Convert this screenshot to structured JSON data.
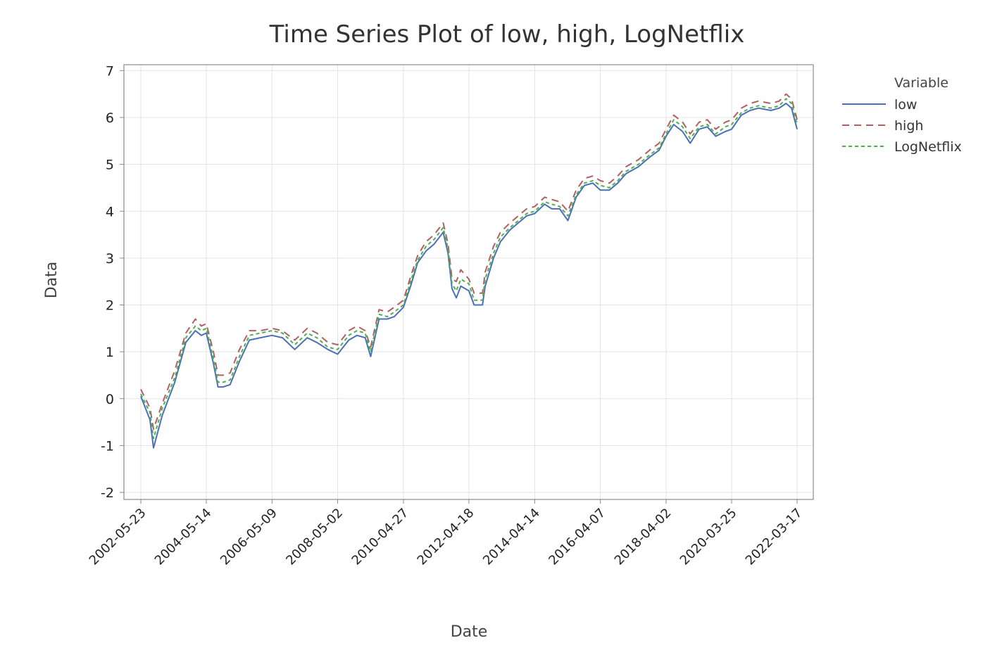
{
  "chart_data": {
    "type": "line",
    "title": "Time Series Plot of low, high, LogNetflix",
    "xlabel": "Date",
    "ylabel": "Data",
    "ylim": [
      -2,
      7
    ],
    "yticks": [
      "-2",
      "-1",
      "0",
      "1",
      "2",
      "3",
      "4",
      "5",
      "6",
      "7"
    ],
    "xticks": [
      "2002-05-23",
      "2004-05-14",
      "2006-05-09",
      "2008-05-02",
      "2010-04-27",
      "2012-04-18",
      "2014-04-14",
      "2016-04-07",
      "2018-04-02",
      "2020-03-25",
      "2022-03-17"
    ],
    "x_range": [
      "2002-05-23",
      "2022-03-17"
    ],
    "grid": true,
    "legend": {
      "title": "Variable",
      "position": "top-right"
    },
    "x": [
      "2002-05-23",
      "2002-09-01",
      "2002-10-10",
      "2003-01-15",
      "2003-06-01",
      "2003-10-01",
      "2004-01-15",
      "2004-03-20",
      "2004-05-14",
      "2004-08-01",
      "2004-09-20",
      "2004-11-15",
      "2005-02-01",
      "2005-05-15",
      "2005-09-01",
      "2006-01-01",
      "2006-05-09",
      "2006-09-01",
      "2007-01-15",
      "2007-06-01",
      "2007-09-15",
      "2008-01-15",
      "2008-05-02",
      "2008-09-01",
      "2008-12-01",
      "2009-03-01",
      "2009-05-01",
      "2009-08-01",
      "2009-11-01",
      "2010-01-15",
      "2010-04-27",
      "2010-07-15",
      "2010-10-01",
      "2011-01-01",
      "2011-04-01",
      "2011-07-10",
      "2011-09-01",
      "2011-10-15",
      "2011-12-01",
      "2012-01-20",
      "2012-04-18",
      "2012-06-15",
      "2012-09-15",
      "2012-10-15",
      "2013-01-15",
      "2013-04-01",
      "2013-07-15",
      "2014-01-15",
      "2014-04-14",
      "2014-08-01",
      "2014-10-20",
      "2015-01-15",
      "2015-04-15",
      "2015-07-15",
      "2015-10-15",
      "2016-01-15",
      "2016-04-07",
      "2016-07-15",
      "2016-10-15",
      "2017-01-15",
      "2017-06-01",
      "2017-10-01",
      "2018-01-15",
      "2018-04-02",
      "2018-06-25",
      "2018-10-01",
      "2018-12-24",
      "2019-04-01",
      "2019-07-01",
      "2019-10-01",
      "2020-01-15",
      "2020-03-25",
      "2020-07-10",
      "2020-10-15",
      "2021-01-15",
      "2021-06-01",
      "2021-09-01",
      "2021-11-15",
      "2022-01-15",
      "2022-03-17"
    ],
    "series": [
      {
        "name": "low",
        "color": "#4a6fb8",
        "dash": "solid",
        "values": [
          0.05,
          -0.45,
          -1.05,
          -0.35,
          0.35,
          1.2,
          1.45,
          1.35,
          1.4,
          0.75,
          0.25,
          0.25,
          0.3,
          0.8,
          1.25,
          1.3,
          1.35,
          1.3,
          1.05,
          1.3,
          1.2,
          1.05,
          0.95,
          1.25,
          1.35,
          1.3,
          0.9,
          1.7,
          1.7,
          1.75,
          1.95,
          2.4,
          2.9,
          3.15,
          3.3,
          3.55,
          3.1,
          2.35,
          2.15,
          2.4,
          2.3,
          2.0,
          2.0,
          2.4,
          3.0,
          3.35,
          3.6,
          3.9,
          3.95,
          4.15,
          4.05,
          4.05,
          3.8,
          4.3,
          4.55,
          4.6,
          4.45,
          4.45,
          4.6,
          4.8,
          4.95,
          5.15,
          5.3,
          5.6,
          5.85,
          5.7,
          5.45,
          5.75,
          5.8,
          5.6,
          5.7,
          5.75,
          6.05,
          6.15,
          6.2,
          6.15,
          6.2,
          6.3,
          6.2,
          5.75
        ]
      },
      {
        "name": "high",
        "color": "#b06060",
        "dash": "10,7",
        "values": [
          0.2,
          -0.2,
          -0.65,
          -0.1,
          0.6,
          1.4,
          1.7,
          1.55,
          1.6,
          1.0,
          0.5,
          0.5,
          0.55,
          1.05,
          1.45,
          1.45,
          1.5,
          1.45,
          1.25,
          1.5,
          1.4,
          1.2,
          1.15,
          1.45,
          1.55,
          1.45,
          1.1,
          1.9,
          1.85,
          1.95,
          2.1,
          2.6,
          3.05,
          3.35,
          3.5,
          3.75,
          3.3,
          2.55,
          2.5,
          2.75,
          2.55,
          2.25,
          2.25,
          2.7,
          3.25,
          3.55,
          3.75,
          4.05,
          4.1,
          4.3,
          4.25,
          4.2,
          4.0,
          4.45,
          4.7,
          4.75,
          4.65,
          4.6,
          4.75,
          4.95,
          5.1,
          5.3,
          5.45,
          5.75,
          6.05,
          5.9,
          5.65,
          5.9,
          5.95,
          5.75,
          5.9,
          5.95,
          6.2,
          6.3,
          6.35,
          6.3,
          6.35,
          6.5,
          6.4,
          5.95
        ]
      },
      {
        "name": "LogNetflix",
        "color": "#4caf50",
        "dash": "5,4",
        "values": [
          0.1,
          -0.3,
          -0.85,
          -0.2,
          0.45,
          1.3,
          1.55,
          1.45,
          1.5,
          0.85,
          0.35,
          0.35,
          0.4,
          0.9,
          1.35,
          1.4,
          1.45,
          1.4,
          1.15,
          1.4,
          1.3,
          1.1,
          1.05,
          1.35,
          1.45,
          1.4,
          1.0,
          1.8,
          1.75,
          1.85,
          2.0,
          2.5,
          2.95,
          3.25,
          3.4,
          3.65,
          3.2,
          2.45,
          2.3,
          2.55,
          2.45,
          2.1,
          2.1,
          2.55,
          3.1,
          3.45,
          3.65,
          3.95,
          4.0,
          4.2,
          4.15,
          4.1,
          3.9,
          4.35,
          4.6,
          4.65,
          4.55,
          4.5,
          4.65,
          4.85,
          5.0,
          5.2,
          5.35,
          5.65,
          5.95,
          5.8,
          5.55,
          5.8,
          5.85,
          5.65,
          5.8,
          5.85,
          6.1,
          6.2,
          6.25,
          6.2,
          6.25,
          6.4,
          6.3,
          5.85
        ]
      }
    ]
  }
}
